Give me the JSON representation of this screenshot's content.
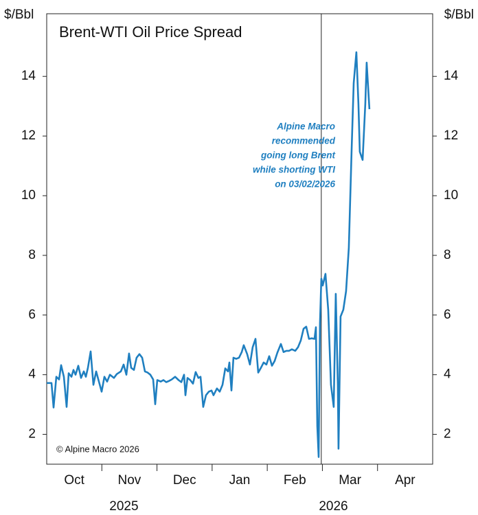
{
  "chart_data": {
    "type": "line",
    "title": "Brent-WTI Oil Price Spread",
    "y_label": "$/Bbl",
    "y2_label": "$/Bbl",
    "copyright": "© Alpine Macro 2026",
    "annotation": {
      "lines": [
        "Alpine Macro",
        "recommended",
        "going long Brent",
        "while shorting WTI",
        "on 03/02/2026"
      ],
      "x": 4.98,
      "color": "#1f7fc0"
    },
    "color": "#1f7fc0",
    "xlim": [
      0,
      7
    ],
    "xticks": [
      1,
      2,
      3,
      4,
      5,
      6
    ],
    "month_labels": [
      {
        "value": 0.5,
        "label": "Oct"
      },
      {
        "value": 1.5,
        "label": "Nov"
      },
      {
        "value": 2.5,
        "label": "Dec"
      },
      {
        "value": 3.5,
        "label": "Jan"
      },
      {
        "value": 4.5,
        "label": "Feb"
      },
      {
        "value": 5.5,
        "label": "Mar"
      },
      {
        "value": 6.5,
        "label": "Apr"
      }
    ],
    "year_labels": [
      {
        "value": 1.4,
        "label": "2025"
      },
      {
        "value": 5.2,
        "label": "2026"
      }
    ],
    "ylim": [
      1,
      16.1
    ],
    "yticks": [
      2,
      4,
      6,
      8,
      10,
      12,
      14
    ],
    "y2lim": [
      1,
      16.1
    ],
    "y2ticks": [
      2,
      4,
      6,
      8,
      10,
      12,
      14
    ],
    "x": [
      0,
      0.087,
      0.125,
      0.174,
      0.224,
      0.262,
      0.311,
      0.361,
      0.399,
      0.448,
      0.486,
      0.523,
      0.573,
      0.623,
      0.672,
      0.71,
      0.747,
      0.797,
      0.847,
      0.897,
      0.946,
      0.996,
      1.046,
      1.096,
      1.146,
      1.22,
      1.27,
      1.345,
      1.395,
      1.445,
      1.494,
      1.532,
      1.582,
      1.631,
      1.681,
      1.731,
      1.781,
      1.831,
      1.88,
      1.93,
      1.968,
      2.005,
      2.067,
      2.117,
      2.167,
      2.217,
      2.267,
      2.329,
      2.391,
      2.441,
      2.491,
      2.516,
      2.553,
      2.603,
      2.653,
      2.702,
      2.752,
      2.79,
      2.839,
      2.889,
      2.939,
      2.989,
      3.026,
      3.088,
      3.138,
      3.188,
      3.238,
      3.288,
      3.313,
      3.35,
      3.387,
      3.437,
      3.487,
      3.537,
      3.574,
      3.636,
      3.686,
      3.736,
      3.786,
      3.836,
      3.885,
      3.935,
      3.985,
      4.035,
      4.085,
      4.134,
      4.184,
      4.247,
      4.296,
      4.346,
      4.396,
      4.446,
      4.508,
      4.558,
      4.608,
      4.658,
      4.707,
      4.757,
      4.807,
      4.857,
      4.882,
      4.907,
      4.932,
      4.956,
      4.981,
      5.006,
      5.056,
      5.106,
      5.155,
      5.205,
      5.242,
      5.28,
      5.292,
      5.33,
      5.38,
      5.429,
      5.479,
      5.529,
      5.567,
      5.616,
      5.654,
      5.679,
      5.729,
      5.778,
      5.803,
      5.853
    ],
    "values": [
      3.72,
      3.72,
      2.9,
      3.93,
      3.84,
      4.32,
      3.93,
      2.92,
      4.05,
      3.93,
      4.16,
      4.0,
      4.3,
      3.89,
      4.11,
      3.93,
      4.23,
      4.78,
      3.66,
      4.11,
      3.77,
      3.43,
      3.93,
      3.77,
      4.0,
      3.89,
      4.02,
      4.11,
      4.34,
      4.0,
      4.71,
      4.23,
      4.16,
      4.57,
      4.69,
      4.57,
      4.11,
      4.07,
      4.0,
      3.84,
      3.01,
      3.82,
      3.77,
      3.82,
      3.75,
      3.79,
      3.84,
      3.93,
      3.82,
      3.75,
      4.0,
      3.31,
      3.89,
      3.82,
      3.7,
      4.09,
      3.89,
      3.93,
      2.92,
      3.31,
      3.43,
      3.47,
      3.31,
      3.54,
      3.43,
      3.66,
      4.21,
      4.11,
      4.41,
      3.47,
      4.57,
      4.53,
      4.57,
      4.76,
      4.99,
      4.69,
      4.34,
      4.92,
      5.2,
      4.07,
      4.23,
      4.41,
      4.34,
      4.62,
      4.3,
      4.46,
      4.74,
      5.03,
      4.76,
      4.8,
      4.8,
      4.85,
      4.8,
      4.92,
      5.15,
      5.54,
      5.61,
      5.2,
      5.22,
      5.2,
      5.59,
      2.28,
      1.24,
      5.72,
      7.22,
      6.99,
      7.38,
      6.18,
      3.66,
      2.92,
      6.71,
      3.66,
      1.52,
      5.95,
      6.18,
      6.8,
      8.25,
      11.47,
      13.77,
      14.81,
      13.08,
      11.47,
      11.2,
      13.08,
      14.46,
      12.9
    ]
  }
}
